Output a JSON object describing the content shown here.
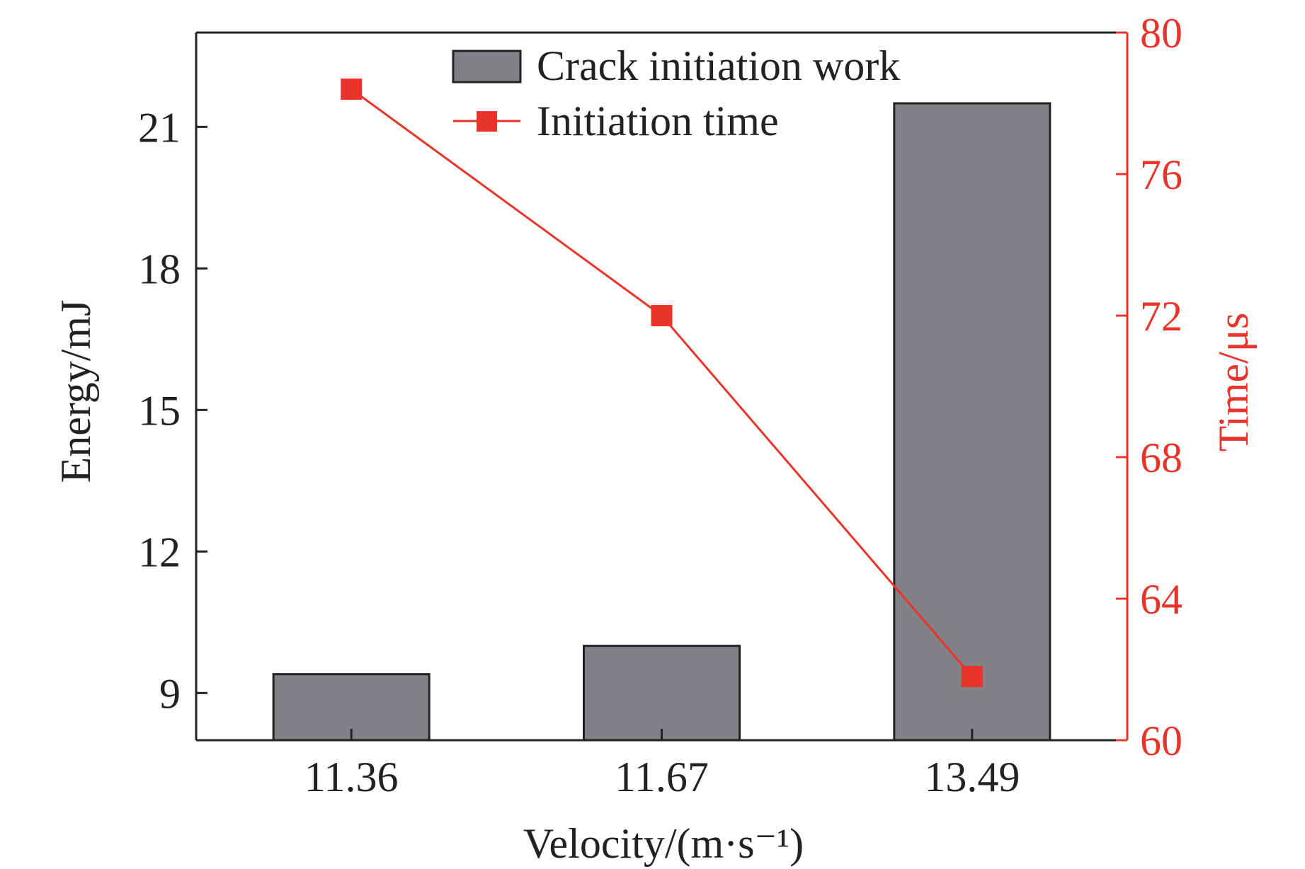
{
  "chart_data": {
    "type": "bar",
    "categories": [
      "11.36",
      "11.67",
      "13.49"
    ],
    "series": [
      {
        "name": "Crack initiation work",
        "type": "bar",
        "axis": "left",
        "values": [
          9.4,
          10.0,
          21.5
        ],
        "color": "#808085"
      },
      {
        "name": "Initiation time",
        "type": "line",
        "axis": "right",
        "values": [
          78.4,
          72.0,
          61.8
        ],
        "color": "#e8342b"
      }
    ],
    "xlabel": "Velocity/(m·s⁻¹)",
    "ylabel": "Energy/mJ",
    "y2label": "Time/μs",
    "ylim": [
      8,
      23
    ],
    "y2lim": [
      60,
      80
    ],
    "yticks": [
      "9",
      "12",
      "15",
      "18",
      "21"
    ],
    "y2ticks": [
      "60",
      "64",
      "68",
      "72",
      "76",
      "80"
    ],
    "legend": "top-center"
  }
}
